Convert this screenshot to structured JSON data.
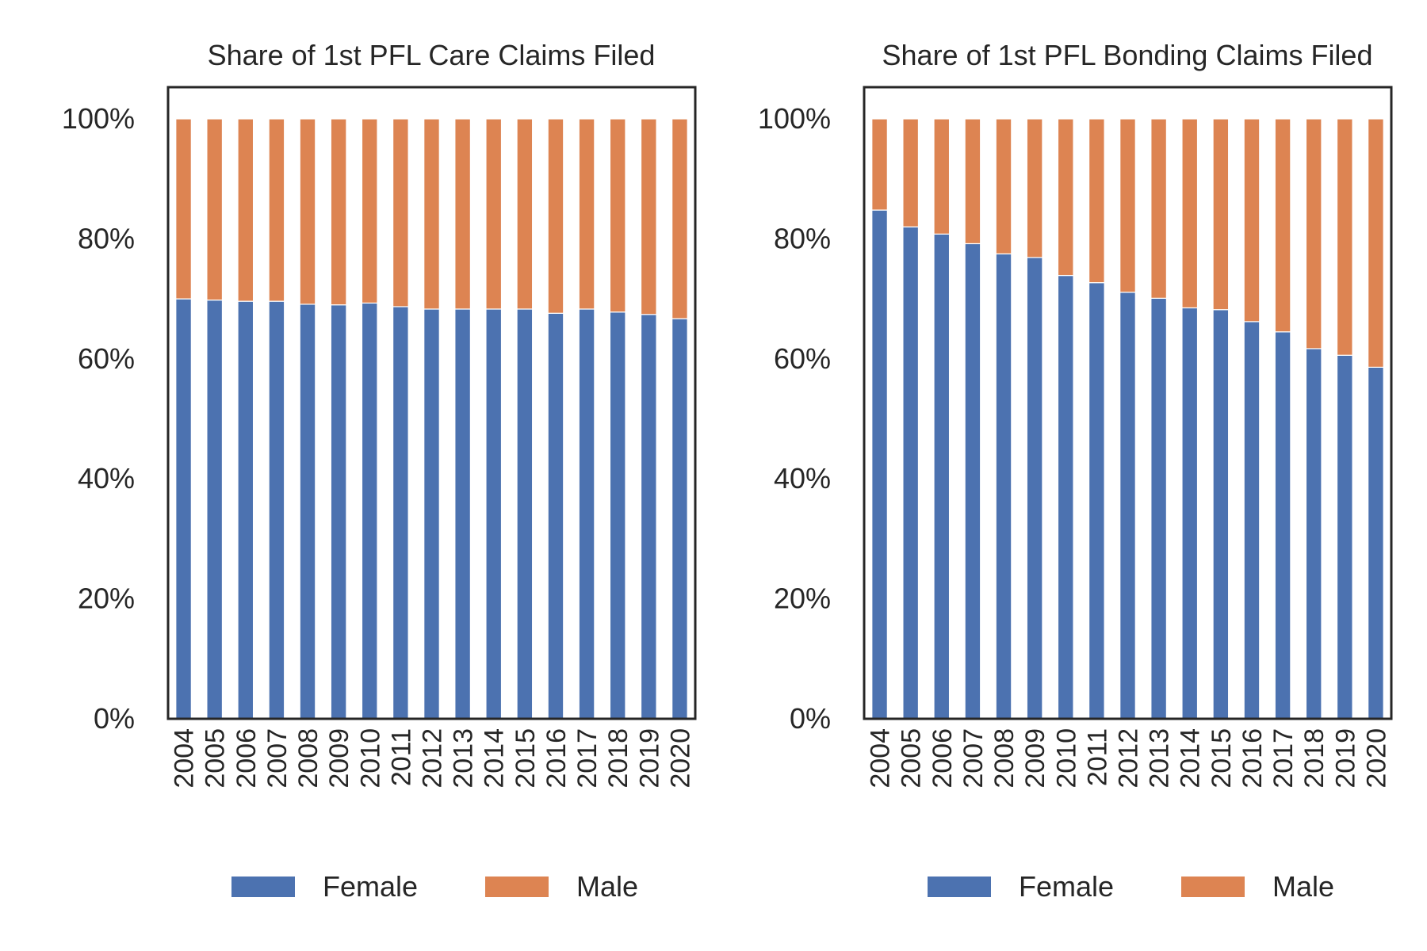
{
  "chart_data": [
    {
      "type": "bar",
      "stacked": true,
      "title": "Share of 1st PFL Care Claims Filed",
      "categories": [
        "2004",
        "2005",
        "2006",
        "2007",
        "2008",
        "2009",
        "2010",
        "2011",
        "2012",
        "2013",
        "2014",
        "2015",
        "2016",
        "2017",
        "2018",
        "2019",
        "2020"
      ],
      "series": [
        {
          "name": "Female",
          "color": "#4c72b0",
          "values": [
            70.0,
            69.8,
            69.6,
            69.6,
            69.1,
            69.0,
            69.3,
            68.7,
            68.3,
            68.3,
            68.3,
            68.3,
            67.6,
            68.3,
            67.8,
            67.4,
            66.7
          ]
        },
        {
          "name": "Male",
          "color": "#dd8452",
          "values": [
            30.0,
            30.2,
            30.4,
            30.4,
            30.9,
            31.0,
            30.7,
            31.3,
            31.7,
            31.7,
            31.7,
            31.7,
            32.4,
            31.7,
            32.2,
            32.6,
            33.3
          ]
        }
      ],
      "ylim": [
        0,
        100
      ],
      "yticks": [
        "0%",
        "20%",
        "40%",
        "60%",
        "80%",
        "100%"
      ],
      "xlabel": "",
      "ylabel": "",
      "grid": false,
      "legend": "bottom"
    },
    {
      "type": "bar",
      "stacked": true,
      "title": "Share of 1st PFL Bonding Claims Filed",
      "categories": [
        "2004",
        "2005",
        "2006",
        "2007",
        "2008",
        "2009",
        "2010",
        "2011",
        "2012",
        "2013",
        "2014",
        "2015",
        "2016",
        "2017",
        "2018",
        "2019",
        "2020"
      ],
      "series": [
        {
          "name": "Female",
          "color": "#4c72b0",
          "values": [
            84.8,
            82.0,
            80.8,
            79.2,
            77.5,
            76.9,
            73.9,
            72.7,
            71.1,
            70.1,
            68.5,
            68.2,
            66.2,
            64.5,
            61.7,
            60.6,
            58.6
          ]
        },
        {
          "name": "Male",
          "color": "#dd8452",
          "values": [
            15.2,
            18.0,
            19.2,
            20.8,
            22.5,
            23.1,
            26.1,
            27.3,
            28.9,
            29.9,
            31.5,
            31.8,
            33.8,
            35.5,
            38.3,
            39.4,
            41.4
          ]
        }
      ],
      "ylim": [
        0,
        100
      ],
      "yticks": [
        "0%",
        "20%",
        "40%",
        "60%",
        "80%",
        "100%"
      ],
      "xlabel": "",
      "ylabel": "",
      "grid": false,
      "legend": "bottom"
    }
  ]
}
